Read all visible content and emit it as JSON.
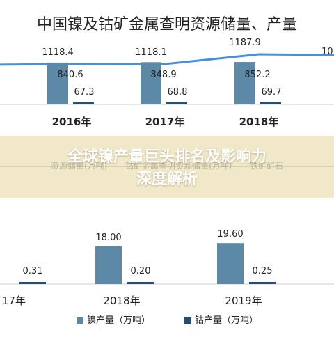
{
  "chart_data": [
    {
      "type": "bar",
      "title": "中国镍及钴矿金属查明资源储量、产量",
      "categories": [
        "2016年",
        "2017年",
        "2018年"
      ],
      "line_values": [
        1118.4,
        1118.1,
        1187.9
      ],
      "series": [
        {
          "values": [
            840.6,
            848.9,
            852.2
          ],
          "color": "#5b89a6"
        },
        {
          "values": [
            67.3,
            68.8,
            69.7
          ],
          "color": "#1f4e79"
        }
      ],
      "line_color": "#4a90d9",
      "partial_edge_label": "10"
    },
    {
      "type": "bar",
      "categories": [
        "17年",
        "2018年",
        "2019年"
      ],
      "series": [
        {
          "name": "镍产量（万吨）",
          "values": [
            null,
            18.0,
            19.6
          ],
          "labels": [
            "",
            "18.00",
            "19.60"
          ],
          "color": "#5b89a6"
        },
        {
          "name": "钴产量（万吨）",
          "values": [
            0.31,
            0.2,
            0.25
          ],
          "labels": [
            "0.31",
            "0.20",
            "0.25"
          ],
          "color": "#1f4e79"
        }
      ],
      "legend_position": "bottom"
    }
  ],
  "overlay": {
    "headline_line1": "全球镍产量巨头排名及影响力",
    "headline_line2": "深度解析",
    "ghost_left": "资源储量(万吨)",
    "ghost_center": "钴矿金属查明资源储量(万吨)",
    "ghost_right": "铁矿矿石"
  }
}
